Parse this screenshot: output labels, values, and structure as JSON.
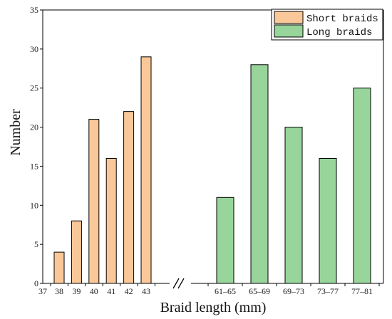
{
  "chart_data": {
    "type": "bar",
    "xlabel": "Braid length (mm)",
    "ylabel": "Number",
    "ylim": [
      0,
      35
    ],
    "yticks": [
      0,
      5,
      10,
      15,
      20,
      25,
      30,
      35
    ],
    "axis_break": true,
    "legend_position": "top-right",
    "left_axis_start_label": "37",
    "series": [
      {
        "name": "Short braids",
        "color": "#FAC898",
        "categories": [
          "38",
          "39",
          "40",
          "41",
          "42",
          "43"
        ],
        "values": [
          4,
          8,
          21,
          16,
          22,
          29
        ]
      },
      {
        "name": "Long braids",
        "color": "#97D59A",
        "categories": [
          "61–65",
          "65–69",
          "69–73",
          "73–77",
          "77–81"
        ],
        "values": [
          11,
          28,
          20,
          16,
          25
        ]
      }
    ]
  }
}
